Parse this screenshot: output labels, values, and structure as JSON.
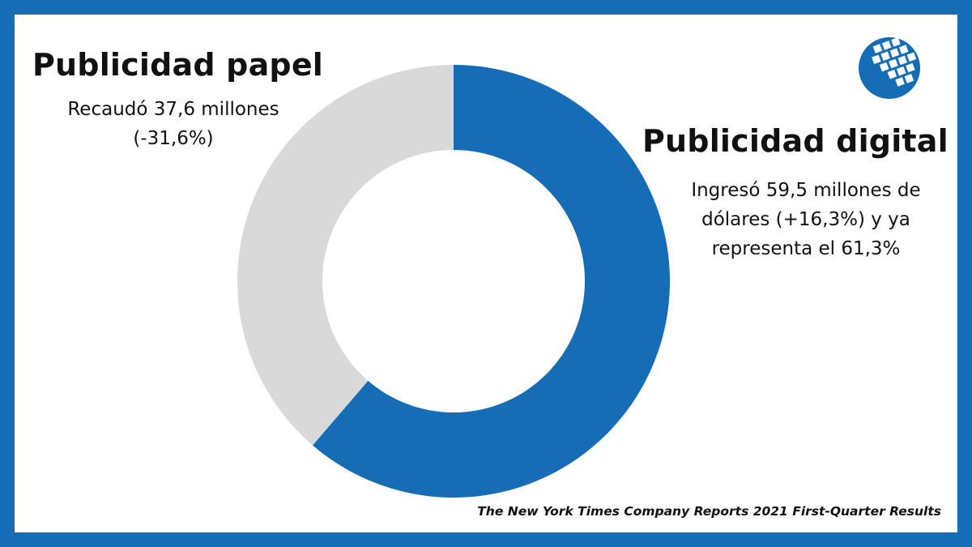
{
  "colors": {
    "frame": "#156db5",
    "digital": "#156db5",
    "print": "#d9d9d9"
  },
  "labels": {
    "print_title": "Publicidad papel",
    "print_line1": "Recaudó 37,6 millones",
    "print_line2": "(-31,6%)",
    "digital_title": "Publicidad digital",
    "digital_line1": "Ingresó 59,5 millones de",
    "digital_line2": "dólares (+16,3%) y ya",
    "digital_line3": "representa el 61,3%"
  },
  "source": "The New York Times Company Reports 2021 First-Quarter Results",
  "logo": {
    "icon": "globe-grid-logo-icon"
  },
  "chart_data": {
    "type": "pie",
    "variant": "donut",
    "slices": [
      {
        "label": "Publicidad digital",
        "value": 61.3,
        "color": "#156db5"
      },
      {
        "label": "Publicidad papel",
        "value": 38.7,
        "color": "#d9d9d9"
      }
    ]
  }
}
